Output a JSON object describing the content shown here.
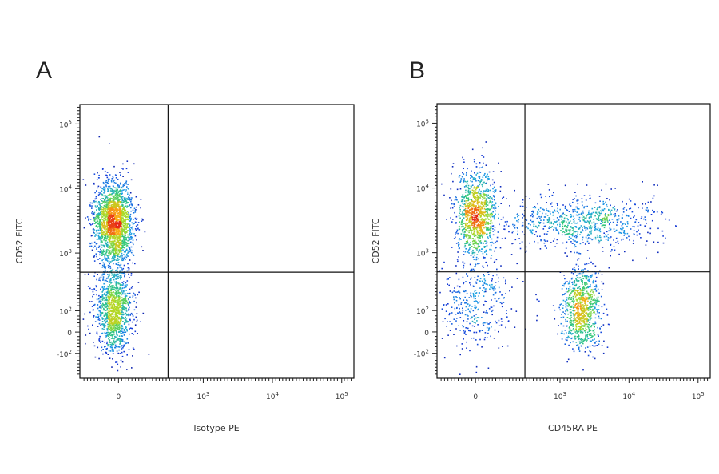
{
  "chart_data": [
    {
      "type": "scatter",
      "panel_label": "A",
      "xlabel": "Isotype PE",
      "ylabel": "CD52 FITC",
      "x_scale": "biexponential",
      "y_scale": "biexponential",
      "xlim": [
        -200,
        150000
      ],
      "ylim": [
        -300,
        200000
      ],
      "x_ticks": [
        {
          "value": 0,
          "label": "0"
        },
        {
          "value": 1000,
          "label": "10",
          "exp": "3"
        },
        {
          "value": 10000,
          "label": "10",
          "exp": "4"
        },
        {
          "value": 100000,
          "label": "10",
          "exp": "5"
        }
      ],
      "y_ticks": [
        {
          "value": -100,
          "label": "-10",
          "exp": "2"
        },
        {
          "value": 0,
          "label": "0"
        },
        {
          "value": 100,
          "label": "10",
          "exp": "2"
        },
        {
          "value": 1000,
          "label": "10",
          "exp": "3"
        },
        {
          "value": 10000,
          "label": "10",
          "exp": "4"
        },
        {
          "value": 100000,
          "label": "10",
          "exp": "5"
        }
      ],
      "quadrant_gate": {
        "x": 300,
        "y": 500
      },
      "populations": [
        {
          "x_center": -20,
          "y_center": 3000,
          "relative_density": "high",
          "share": 0.62
        },
        {
          "x_center": -20,
          "y_center": 110,
          "relative_density": "high",
          "share": 0.38
        }
      ]
    },
    {
      "type": "scatter",
      "panel_label": "B",
      "xlabel": "CD45RA PE",
      "ylabel": "CD52 FITC",
      "x_scale": "biexponential",
      "y_scale": "biexponential",
      "xlim": [
        -200,
        150000
      ],
      "ylim": [
        -300,
        200000
      ],
      "x_ticks": [
        {
          "value": 0,
          "label": "0"
        },
        {
          "value": 1000,
          "label": "10",
          "exp": "3"
        },
        {
          "value": 10000,
          "label": "10",
          "exp": "4"
        },
        {
          "value": 100000,
          "label": "10",
          "exp": "5"
        }
      ],
      "y_ticks": [
        {
          "value": -100,
          "label": "-10",
          "exp": "2"
        },
        {
          "value": 0,
          "label": "0"
        },
        {
          "value": 100,
          "label": "10",
          "exp": "2"
        },
        {
          "value": 1000,
          "label": "10",
          "exp": "3"
        },
        {
          "value": 10000,
          "label": "10",
          "exp": "4"
        },
        {
          "value": 100000,
          "label": "10",
          "exp": "5"
        }
      ],
      "quadrant_gate": {
        "x": 300,
        "y": 500
      },
      "populations": [
        {
          "x_center": 0,
          "y_center": 4000,
          "relative_density": "high",
          "share": 0.35
        },
        {
          "x_center": 2000,
          "y_center": 3000,
          "relative_density": "medium",
          "share": 0.25
        },
        {
          "x_center": 2000,
          "y_center": 110,
          "relative_density": "high",
          "share": 0.28
        },
        {
          "x_center": 0,
          "y_center": 150,
          "relative_density": "low",
          "share": 0.12
        }
      ]
    }
  ]
}
